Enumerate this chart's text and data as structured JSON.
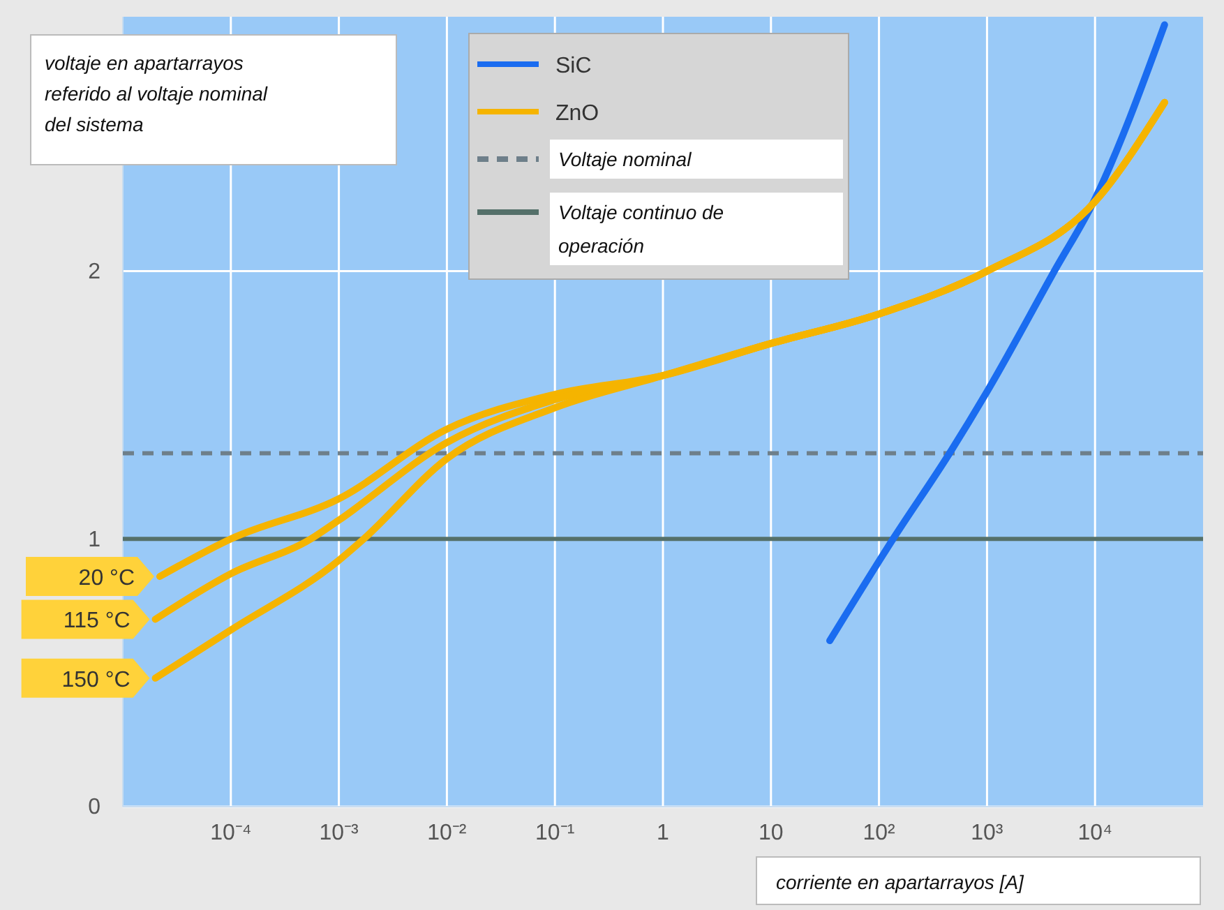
{
  "chart_data": {
    "type": "line",
    "xlabel": "corriente en apartarrayos [A]",
    "ylabel": "voltaje en apartarrayos referido al voltaje nominal del sistema",
    "log": "x",
    "grid": true,
    "legend": "top",
    "line_style": "solid",
    "marker": "none",
    "xlim": [
      1e-05,
      100000
    ],
    "ylim": [
      0,
      2.95
    ],
    "xticks": [
      {
        "value": 0.0001,
        "label": "10⁻⁴"
      },
      {
        "value": 0.001,
        "label": "10⁻³"
      },
      {
        "value": 0.01,
        "label": "10⁻²"
      },
      {
        "value": 0.1,
        "label": "10⁻¹"
      },
      1,
      10,
      {
        "value": 100,
        "label": "10²"
      },
      {
        "value": 1000,
        "label": "10³"
      },
      {
        "value": 10000,
        "label": "10⁴"
      }
    ],
    "yticks": [
      0,
      1,
      2
    ],
    "series": [
      {
        "name": "SiC",
        "color": "#1a6cf0",
        "x": [
          35,
          135,
          450,
          1000,
          4200,
          10000,
          44000
        ],
        "values": [
          0.62,
          1.0,
          1.32,
          1.55,
          2.0,
          2.27,
          2.92
        ]
      },
      {
        "name": "ZnO",
        "color": "#f5b400",
        "x": [
          2.2e-05,
          0.0001,
          0.001,
          0.01,
          0.1,
          1,
          10,
          100,
          1000,
          10000,
          44000
        ],
        "values": [
          0.86,
          1.0,
          1.15,
          1.41,
          1.54,
          1.61,
          1.73,
          1.84,
          2.0,
          2.26,
          2.63
        ]
      },
      {
        "color": "#f5b400",
        "x": [
          2e-05,
          0.0001,
          0.00055,
          0.001,
          0.01,
          0.1,
          1,
          10,
          100,
          1000,
          10000,
          44000
        ],
        "values": [
          0.7,
          0.87,
          1.0,
          1.07,
          1.36,
          1.52,
          1.61,
          1.73,
          1.84,
          2.0,
          2.26,
          2.63
        ]
      },
      {
        "color": "#f5b400",
        "x": [
          2e-05,
          0.0001,
          0.001,
          0.0017,
          0.01,
          0.1,
          1,
          10,
          100,
          1000,
          10000,
          44000
        ],
        "values": [
          0.48,
          0.66,
          0.92,
          1.0,
          1.3,
          1.49,
          1.61,
          1.73,
          1.84,
          2.0,
          2.26,
          2.63
        ]
      }
    ],
    "ref_lines": [
      {
        "axis": "y",
        "value": 1.32,
        "label": "Voltaje nominal",
        "color": "#6e7f8a",
        "line_style": "dashed"
      },
      {
        "axis": "y",
        "value": 1.0,
        "label": "Voltaje continuo de operación",
        "color": "#55706a",
        "line_style": "solid"
      }
    ],
    "annotations": [
      "20 °C",
      "115 °C",
      "150 °C"
    ]
  }
}
